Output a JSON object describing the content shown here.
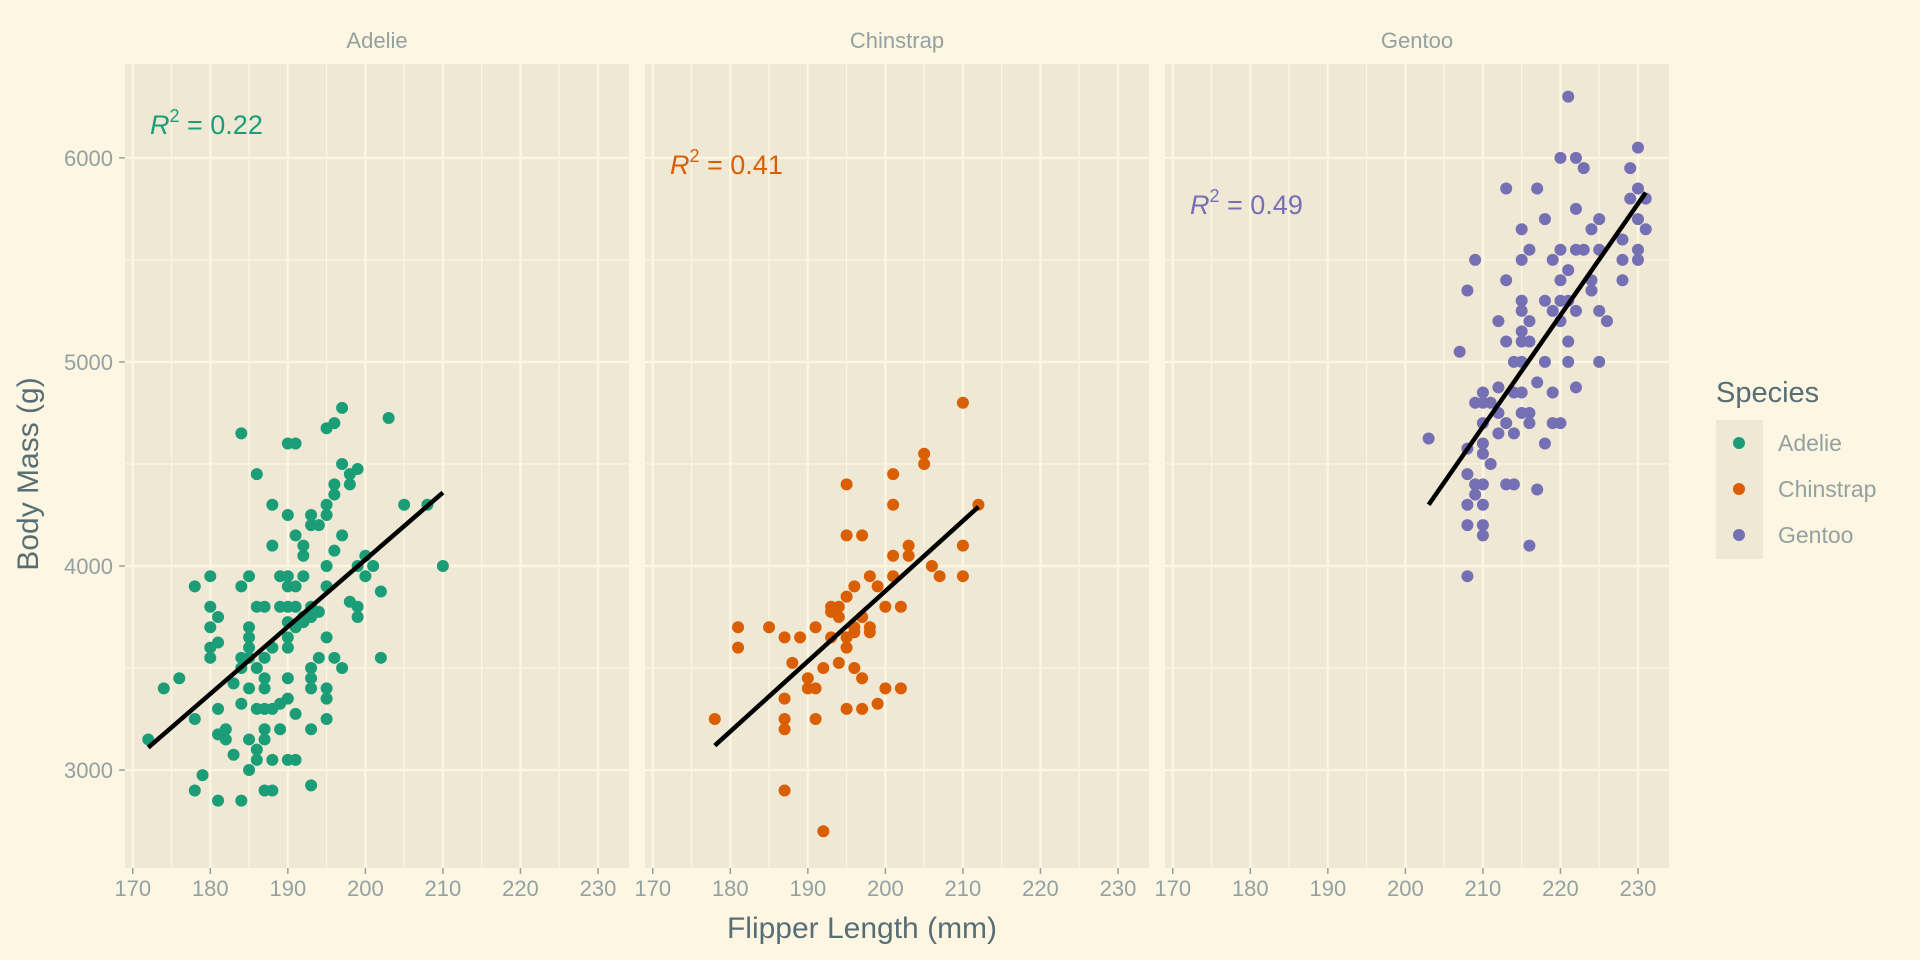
{
  "chart_data": {
    "type": "scatter",
    "xlabel": "Flipper Length (mm)",
    "ylabel": "Body Mass (g)",
    "xlim": [
      169,
      234
    ],
    "ylim": [
      2520,
      6460
    ],
    "x_ticks": [
      170,
      180,
      190,
      200,
      210,
      220,
      230
    ],
    "y_ticks": [
      3000,
      4000,
      5000,
      6000
    ],
    "grid": true,
    "legend_title": "Species",
    "legend_position": "right",
    "colors": {
      "panel_bg": "#eee8d5",
      "page_bg": "#fdf6e3",
      "grid": "#fdf6e3",
      "fit_line": "#000000"
    },
    "panels": [
      {
        "name": "Adelie",
        "color": "#1b9e77",
        "r2_label": "R",
        "r2_sup": "2",
        "r2_value": " = 0.22",
        "fit": {
          "x": [
            172,
            210
          ],
          "y": [
            3110,
            4360
          ]
        },
        "points": [
          [
            172,
            3150
          ],
          [
            174,
            3400
          ],
          [
            176,
            3450
          ],
          [
            178,
            3250
          ],
          [
            178,
            3900
          ],
          [
            178,
            2900
          ],
          [
            179,
            2975
          ],
          [
            180,
            3950
          ],
          [
            180,
            3800
          ],
          [
            180,
            3700
          ],
          [
            180,
            3600
          ],
          [
            180,
            3550
          ],
          [
            181,
            3625
          ],
          [
            181,
            3750
          ],
          [
            181,
            3300
          ],
          [
            181,
            3175
          ],
          [
            181,
            2850
          ],
          [
            182,
            3200
          ],
          [
            182,
            3150
          ],
          [
            183,
            3425
          ],
          [
            183,
            3075
          ],
          [
            184,
            3550
          ],
          [
            184,
            3900
          ],
          [
            184,
            4650
          ],
          [
            184,
            3500
          ],
          [
            184,
            3325
          ],
          [
            184,
            2850
          ],
          [
            185,
            3950
          ],
          [
            185,
            3700
          ],
          [
            185,
            3650
          ],
          [
            185,
            3600
          ],
          [
            185,
            3550
          ],
          [
            185,
            3400
          ],
          [
            185,
            3150
          ],
          [
            185,
            3000
          ],
          [
            186,
            4450
          ],
          [
            186,
            3800
          ],
          [
            186,
            3500
          ],
          [
            186,
            3300
          ],
          [
            186,
            3100
          ],
          [
            186,
            3050
          ],
          [
            187,
            3800
          ],
          [
            187,
            3450
          ],
          [
            187,
            3400
          ],
          [
            187,
            3550
          ],
          [
            187,
            3200
          ],
          [
            187,
            3150
          ],
          [
            187,
            3300
          ],
          [
            187,
            2900
          ],
          [
            188,
            4300
          ],
          [
            188,
            4100
          ],
          [
            188,
            3600
          ],
          [
            188,
            3300
          ],
          [
            188,
            3050
          ],
          [
            188,
            2900
          ],
          [
            189,
            3950
          ],
          [
            189,
            3800
          ],
          [
            189,
            3325
          ],
          [
            189,
            3200
          ],
          [
            190,
            4600
          ],
          [
            190,
            4250
          ],
          [
            190,
            3950
          ],
          [
            190,
            3900
          ],
          [
            190,
            3800
          ],
          [
            190,
            3725
          ],
          [
            190,
            3650
          ],
          [
            190,
            3600
          ],
          [
            190,
            3450
          ],
          [
            190,
            3350
          ],
          [
            190,
            3050
          ],
          [
            191,
            4600
          ],
          [
            191,
            4150
          ],
          [
            191,
            3900
          ],
          [
            191,
            3800
          ],
          [
            191,
            3700
          ],
          [
            191,
            3275
          ],
          [
            191,
            3050
          ],
          [
            192,
            4100
          ],
          [
            192,
            4050
          ],
          [
            192,
            3950
          ],
          [
            192,
            3725
          ],
          [
            192,
            3750
          ],
          [
            193,
            4250
          ],
          [
            193,
            4200
          ],
          [
            193,
            3800
          ],
          [
            193,
            3750
          ],
          [
            193,
            3500
          ],
          [
            193,
            3450
          ],
          [
            193,
            3400
          ],
          [
            193,
            3200
          ],
          [
            193,
            2925
          ],
          [
            194,
            4200
          ],
          [
            194,
            3550
          ],
          [
            194,
            3775
          ],
          [
            195,
            4675
          ],
          [
            195,
            4300
          ],
          [
            195,
            4250
          ],
          [
            195,
            4000
          ],
          [
            195,
            3900
          ],
          [
            195,
            3650
          ],
          [
            195,
            3400
          ],
          [
            195,
            3350
          ],
          [
            195,
            3250
          ],
          [
            196,
            4700
          ],
          [
            196,
            4400
          ],
          [
            196,
            4350
          ],
          [
            196,
            4075
          ],
          [
            196,
            3550
          ],
          [
            197,
            4775
          ],
          [
            197,
            4500
          ],
          [
            197,
            4150
          ],
          [
            197,
            3500
          ],
          [
            198,
            4400
          ],
          [
            198,
            4450
          ],
          [
            198,
            3825
          ],
          [
            199,
            4475
          ],
          [
            199,
            4000
          ],
          [
            199,
            3750
          ],
          [
            199,
            3800
          ],
          [
            200,
            4050
          ],
          [
            200,
            3950
          ],
          [
            201,
            4000
          ],
          [
            202,
            3875
          ],
          [
            202,
            3550
          ],
          [
            203,
            4725
          ],
          [
            205,
            4300
          ],
          [
            208,
            4300
          ],
          [
            210,
            4000
          ]
        ]
      },
      {
        "name": "Chinstrap",
        "color": "#d95f02",
        "r2_label": "R",
        "r2_sup": "2",
        "r2_value": " = 0.41",
        "fit": {
          "x": [
            178,
            212
          ],
          "y": [
            3120,
            4290
          ]
        },
        "points": [
          [
            178,
            3250
          ],
          [
            181,
            3700
          ],
          [
            181,
            3600
          ],
          [
            185,
            3700
          ],
          [
            187,
            3650
          ],
          [
            187,
            3350
          ],
          [
            187,
            3250
          ],
          [
            187,
            3200
          ],
          [
            187,
            2900
          ],
          [
            188,
            3525
          ],
          [
            189,
            3650
          ],
          [
            190,
            3450
          ],
          [
            190,
            3400
          ],
          [
            191,
            3700
          ],
          [
            191,
            3400
          ],
          [
            191,
            3250
          ],
          [
            192,
            2700
          ],
          [
            192,
            3500
          ],
          [
            193,
            3800
          ],
          [
            193,
            3775
          ],
          [
            193,
            3650
          ],
          [
            194,
            3800
          ],
          [
            194,
            3750
          ],
          [
            194,
            3525
          ],
          [
            195,
            4400
          ],
          [
            195,
            4150
          ],
          [
            195,
            3850
          ],
          [
            195,
            3650
          ],
          [
            195,
            3600
          ],
          [
            195,
            3300
          ],
          [
            196,
            3900
          ],
          [
            196,
            3700
          ],
          [
            196,
            3675
          ],
          [
            196,
            3500
          ],
          [
            197,
            4150
          ],
          [
            197,
            3750
          ],
          [
            197,
            3450
          ],
          [
            197,
            3300
          ],
          [
            198,
            3700
          ],
          [
            198,
            3675
          ],
          [
            198,
            3950
          ],
          [
            199,
            3900
          ],
          [
            199,
            3325
          ],
          [
            200,
            3800
          ],
          [
            200,
            3400
          ],
          [
            201,
            4450
          ],
          [
            201,
            4300
          ],
          [
            201,
            4050
          ],
          [
            201,
            3950
          ],
          [
            202,
            3800
          ],
          [
            202,
            3400
          ],
          [
            203,
            4100
          ],
          [
            203,
            4050
          ],
          [
            205,
            4550
          ],
          [
            205,
            4500
          ],
          [
            206,
            4000
          ],
          [
            207,
            3950
          ],
          [
            210,
            4800
          ],
          [
            210,
            4100
          ],
          [
            210,
            3950
          ],
          [
            212,
            4300
          ]
        ]
      },
      {
        "name": "Gentoo",
        "color": "#7570b3",
        "r2_label": "R",
        "r2_sup": "2",
        "r2_value": " = 0.49",
        "fit": {
          "x": [
            203,
            231
          ],
          "y": [
            4300,
            5830
          ]
        },
        "points": [
          [
            203,
            4625
          ],
          [
            207,
            5050
          ],
          [
            208,
            5350
          ],
          [
            208,
            4575
          ],
          [
            208,
            4450
          ],
          [
            208,
            4300
          ],
          [
            208,
            4200
          ],
          [
            208,
            3950
          ],
          [
            209,
            5500
          ],
          [
            209,
            4800
          ],
          [
            209,
            4400
          ],
          [
            209,
            4350
          ],
          [
            210,
            4850
          ],
          [
            210,
            4800
          ],
          [
            210,
            4700
          ],
          [
            210,
            4600
          ],
          [
            210,
            4550
          ],
          [
            210,
            4400
          ],
          [
            210,
            4300
          ],
          [
            210,
            4200
          ],
          [
            210,
            4150
          ],
          [
            211,
            4800
          ],
          [
            211,
            4500
          ],
          [
            212,
            5200
          ],
          [
            212,
            4875
          ],
          [
            212,
            4750
          ],
          [
            212,
            4650
          ],
          [
            213,
            5850
          ],
          [
            213,
            5400
          ],
          [
            213,
            5100
          ],
          [
            213,
            4700
          ],
          [
            213,
            4400
          ],
          [
            214,
            5000
          ],
          [
            214,
            4850
          ],
          [
            214,
            4650
          ],
          [
            214,
            4400
          ],
          [
            215,
            5650
          ],
          [
            215,
            5500
          ],
          [
            215,
            5300
          ],
          [
            215,
            5150
          ],
          [
            215,
            5100
          ],
          [
            215,
            5000
          ],
          [
            215,
            4850
          ],
          [
            215,
            4750
          ],
          [
            215,
            5250
          ],
          [
            216,
            5550
          ],
          [
            216,
            5200
          ],
          [
            216,
            5100
          ],
          [
            216,
            4750
          ],
          [
            216,
            4700
          ],
          [
            216,
            4100
          ],
          [
            217,
            5850
          ],
          [
            217,
            4375
          ],
          [
            217,
            4900
          ],
          [
            218,
            5700
          ],
          [
            218,
            5300
          ],
          [
            218,
            5000
          ],
          [
            218,
            4600
          ],
          [
            219,
            5500
          ],
          [
            219,
            5250
          ],
          [
            219,
            4850
          ],
          [
            219,
            4700
          ],
          [
            220,
            6000
          ],
          [
            220,
            5550
          ],
          [
            220,
            5400
          ],
          [
            220,
            5300
          ],
          [
            220,
            5200
          ],
          [
            220,
            4700
          ],
          [
            221,
            6300
          ],
          [
            221,
            5450
          ],
          [
            221,
            5300
          ],
          [
            221,
            5100
          ],
          [
            221,
            5000
          ],
          [
            222,
            6000
          ],
          [
            222,
            5750
          ],
          [
            222,
            5550
          ],
          [
            222,
            5250
          ],
          [
            222,
            4875
          ],
          [
            223,
            5950
          ],
          [
            223,
            5550
          ],
          [
            224,
            5650
          ],
          [
            224,
            5350
          ],
          [
            224,
            5400
          ],
          [
            225,
            5700
          ],
          [
            225,
            5550
          ],
          [
            225,
            5250
          ],
          [
            225,
            5000
          ],
          [
            226,
            5200
          ],
          [
            228,
            5600
          ],
          [
            228,
            5500
          ],
          [
            228,
            5400
          ],
          [
            229,
            5950
          ],
          [
            229,
            5800
          ],
          [
            230,
            6050
          ],
          [
            230,
            5850
          ],
          [
            230,
            5700
          ],
          [
            230,
            5550
          ],
          [
            230,
            5500
          ],
          [
            231,
            5650
          ],
          [
            231,
            5800
          ]
        ]
      }
    ]
  }
}
